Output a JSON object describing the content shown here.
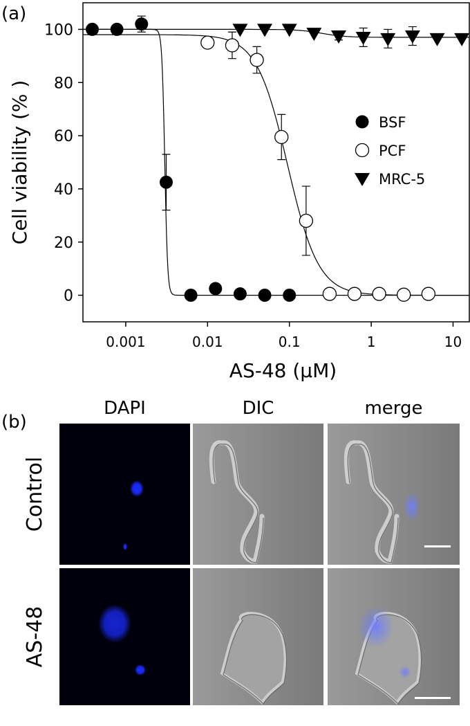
{
  "panel_a_label": "(a)",
  "panel_b_label": "(b)",
  "chart_data": {
    "type": "scatter",
    "xlabel": "AS-48 (μM)",
    "ylabel": "Cell viability (% )",
    "xscale": "log",
    "xlim": [
      0.0003,
      15.8
    ],
    "ylim": [
      -10,
      110
    ],
    "xticks": [
      0.001,
      0.01,
      0.1,
      1,
      10
    ],
    "xtick_labels": [
      "0.001",
      "0.01",
      "0.1",
      "1",
      "10"
    ],
    "yticks": [
      0,
      20,
      40,
      60,
      80,
      100
    ],
    "ytick_labels": [
      "0",
      "20",
      "40",
      "60",
      "80",
      "100"
    ],
    "grid": false,
    "legend_placement": "center-right",
    "series": [
      {
        "name": "BSF",
        "marker": "filled-circle",
        "x": [
          0.00039,
          0.00078,
          0.00156,
          0.003125,
          0.00625,
          0.0125,
          0.025,
          0.05,
          0.1
        ],
        "y": [
          100,
          100,
          102,
          42.5,
          0,
          2.5,
          0.5,
          0,
          0
        ],
        "err": [
          0,
          0,
          3,
          10.5,
          0,
          0,
          0,
          0,
          0
        ],
        "fit": {
          "top": 100,
          "bottom": 0,
          "ic50": 0.003,
          "hill": 25
        }
      },
      {
        "name": "PCF",
        "marker": "open-circle",
        "x": [
          0.01,
          0.02,
          0.04,
          0.08,
          0.16,
          0.31,
          0.625,
          1.25,
          2.5,
          5
        ],
        "y": [
          95,
          94,
          88.5,
          59.5,
          28,
          0.5,
          0.5,
          0.5,
          0.2,
          0.5
        ],
        "err": [
          2,
          5,
          5,
          8.5,
          13,
          0,
          0,
          0,
          0,
          0
        ],
        "fit": {
          "top": 98,
          "bottom": 0,
          "ic50": 0.095,
          "hill": 2.3
        }
      },
      {
        "name": "MRC-5",
        "marker": "filled-triangle-down",
        "x": [
          0.025,
          0.05,
          0.1,
          0.2,
          0.4,
          0.8,
          1.6,
          3.2,
          6.4,
          12.8
        ],
        "y": [
          100,
          100,
          100,
          98.5,
          97.5,
          97,
          96.5,
          97.5,
          96.5,
          96.5
        ],
        "err": [
          0,
          0,
          0,
          0,
          1.5,
          3.5,
          3.5,
          3.5,
          0,
          0
        ],
        "fit": {
          "top": 100,
          "bottom": 97,
          "ic50": 0.25,
          "hill": 3
        }
      }
    ]
  },
  "microscopy": {
    "columns": [
      "DAPI",
      "DIC",
      "merge"
    ],
    "rows": [
      "Control",
      "AS-48"
    ],
    "colors": {
      "dapi": "#1a2cff",
      "background_dark": "#00000c",
      "dic_gray": "#8a8a8a"
    }
  }
}
